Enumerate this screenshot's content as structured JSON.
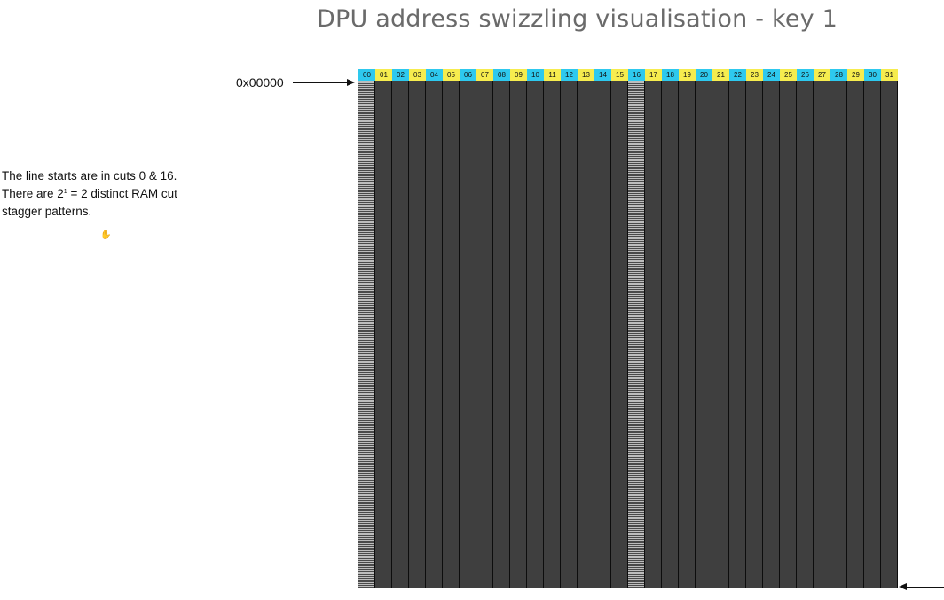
{
  "title": "DPU address swizzling visualisation - key 1",
  "start_address": "0x00000",
  "note": {
    "line1": "The line starts are in cuts 0 & 16.",
    "line2_prefix": "There are 2",
    "line2_sup": "1",
    "line2_suffix": " = 2 distinct RAM cut",
    "line3": "stagger patterns."
  },
  "cut_labels": [
    "00",
    "01",
    "02",
    "03",
    "04",
    "05",
    "06",
    "07",
    "08",
    "09",
    "10",
    "11",
    "12",
    "13",
    "14",
    "15",
    "16",
    "17",
    "18",
    "19",
    "20",
    "21",
    "22",
    "23",
    "24",
    "25",
    "26",
    "27",
    "28",
    "29",
    "30",
    "31"
  ],
  "line_start_cuts": [
    0,
    16
  ],
  "colors": {
    "header_even": "#2ec9ee",
    "header_odd": "#f6ec4e",
    "column_fill": "#3f3f3f",
    "title": "#6a6a6a"
  }
}
